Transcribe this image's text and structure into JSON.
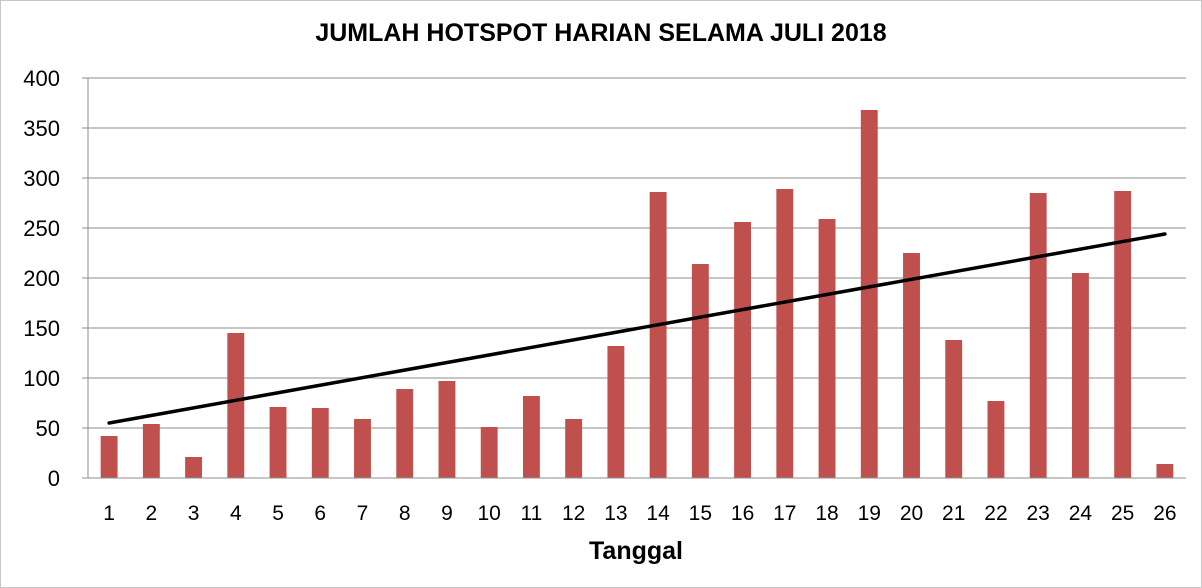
{
  "chart_data": {
    "type": "bar",
    "title": "JUMLAH HOTSPOT HARIAN SELAMA JULI 2018",
    "xlabel": "Tanggal",
    "ylabel": "",
    "categories": [
      "1",
      "2",
      "3",
      "4",
      "5",
      "6",
      "7",
      "8",
      "9",
      "10",
      "11",
      "12",
      "13",
      "14",
      "15",
      "16",
      "17",
      "18",
      "19",
      "20",
      "21",
      "22",
      "23",
      "24",
      "25",
      "26"
    ],
    "values": [
      42,
      54,
      21,
      145,
      71,
      70,
      59,
      89,
      97,
      51,
      82,
      59,
      132,
      286,
      214,
      256,
      289,
      259,
      368,
      225,
      138,
      77,
      285,
      205,
      287,
      14
    ],
    "ylim": [
      0,
      400
    ],
    "yticks": [
      0,
      50,
      100,
      150,
      200,
      250,
      300,
      350,
      400
    ],
    "grid": true,
    "bar_color": "#c0504d",
    "trendline": {
      "type": "linear",
      "color": "#000000",
      "start_value": 55,
      "end_value": 244
    }
  }
}
